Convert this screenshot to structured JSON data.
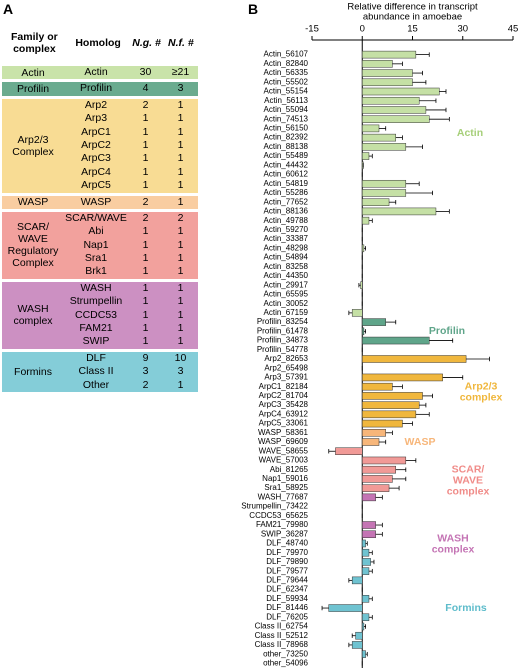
{
  "panel_a": "A",
  "panel_b": "B",
  "table": {
    "header": [
      "Family or complex",
      "Homolog",
      "N.g. #",
      "N.f. #"
    ],
    "groups": [
      {
        "family": "Actin",
        "color": "#c9e3a9",
        "rows": [
          [
            "Actin",
            "30",
            "≥21"
          ]
        ]
      },
      {
        "family": "Profilin",
        "color": "#6aab8f",
        "rows": [
          [
            "Profilin",
            "4",
            "3"
          ]
        ]
      },
      {
        "family": "Arp2/3 Complex",
        "color": "#f8dc94",
        "rows": [
          [
            "Arp2",
            "2",
            "1"
          ],
          [
            "Arp3",
            "1",
            "1"
          ],
          [
            "ArpC1",
            "1",
            "1"
          ],
          [
            "ArpC2",
            "1",
            "1"
          ],
          [
            "ArpC3",
            "1",
            "1"
          ],
          [
            "ArpC4",
            "1",
            "1"
          ],
          [
            "ArpC5",
            "1",
            "1"
          ]
        ]
      },
      {
        "family": "WASP",
        "color": "#f9cda1",
        "rows": [
          [
            "WASP",
            "2",
            "1"
          ]
        ]
      },
      {
        "family": "SCAR/ WAVE Regulatory Complex",
        "color": "#f2a19d",
        "rows": [
          [
            "SCAR/WAVE",
            "2",
            "2"
          ],
          [
            "Abi",
            "1",
            "1"
          ],
          [
            "Nap1",
            "1",
            "1"
          ],
          [
            "Sra1",
            "1",
            "1"
          ],
          [
            "Brk1",
            "1",
            "1"
          ]
        ]
      },
      {
        "family": "WASH complex",
        "color": "#cc90c2",
        "rows": [
          [
            "WASH",
            "1",
            "1"
          ],
          [
            "Strumpellin",
            "1",
            "1"
          ],
          [
            "CCDC53",
            "1",
            "1"
          ],
          [
            "FAM21",
            "1",
            "1"
          ],
          [
            "SWIP",
            "1",
            "1"
          ]
        ]
      },
      {
        "family": "Formins",
        "color": "#84cdd8",
        "rows": [
          [
            "DLF",
            "9",
            "10"
          ],
          [
            "Class II",
            "3",
            "3"
          ],
          [
            "Other",
            "2",
            "1"
          ]
        ]
      }
    ]
  },
  "chart_data": {
    "type": "bar",
    "orientation": "horizontal",
    "x_label": [
      "Relative difference in transcript",
      "abundance in amoebae"
    ],
    "xlim": [
      -15,
      45
    ],
    "xticks": [
      -15,
      0,
      15,
      30,
      45
    ],
    "groups": [
      {
        "label": [
          "Actin"
        ],
        "color": "#c5e0a5",
        "label_color": "#a6cf79",
        "categories": [
          "Actin_56107",
          "Actin_82840",
          "Actin_56335",
          "Actin_55502",
          "Actin_55154",
          "Actin_56113",
          "Actin_55094",
          "Actin_74513",
          "Actin_56150",
          "Actin_82392",
          "Actin_88138",
          "Actin_55489",
          "Actin_44432",
          "Actin_60612",
          "Actin_54819",
          "Actin_55286",
          "Actin_77652",
          "Actin_88136",
          "Actin_49788",
          "Actin_59270",
          "Actin_33387",
          "Actin_48298",
          "Actin_54894",
          "Actin_83258",
          "Actin_44350",
          "Actin_29917",
          "Actin_65595",
          "Actin_30052",
          "Actin_67159"
        ],
        "values": [
          16,
          9,
          15,
          15,
          23,
          17,
          19,
          20,
          5,
          10,
          13,
          2,
          0.3,
          0,
          13,
          13,
          8,
          22,
          2,
          0,
          0,
          0.5,
          0,
          0,
          0,
          -0.5,
          0,
          0,
          -3
        ],
        "errors": [
          4,
          3,
          3,
          4,
          2,
          5,
          6,
          6,
          2,
          2,
          5,
          1,
          0,
          0,
          4,
          8,
          2,
          4,
          1,
          0,
          0,
          0.5,
          0,
          0,
          0,
          0.5,
          0,
          0,
          1
        ]
      },
      {
        "label": [
          "Profilin"
        ],
        "color": "#5fa58a",
        "label_color": "#5fa58a",
        "categories": [
          "Profilin_83254",
          "Profilin_61478",
          "Profilin_34873",
          "Profilin_54778"
        ],
        "values": [
          7,
          0.5,
          20,
          0
        ],
        "errors": [
          3,
          0.5,
          7,
          0
        ]
      },
      {
        "label": [
          "Arp2/3",
          "complex"
        ],
        "color": "#f0b73d",
        "label_color": "#f0b73d",
        "categories": [
          "Arp2_82653",
          "Arp2_65498",
          "Arp3_57391",
          "ArpC1_82184",
          "ArpC2_81704",
          "ArpC3_35428",
          "ArpC4_63912",
          "ArpC5_33061"
        ],
        "values": [
          31,
          0,
          24,
          9,
          18,
          17,
          16,
          12
        ],
        "errors": [
          7,
          0,
          6,
          3,
          3,
          2,
          4,
          3
        ]
      },
      {
        "label": [
          "WASP"
        ],
        "color": "#f7b67a",
        "label_color": "#f7b67a",
        "categories": [
          "WASP_58361",
          "WASP_69609"
        ],
        "values": [
          7,
          5
        ],
        "errors": [
          2,
          2
        ]
      },
      {
        "label": [
          "SCAR/",
          "WAVE",
          "complex"
        ],
        "color": "#f19a97",
        "label_color": "#f08c89",
        "categories": [
          "WAVE_58655",
          "WAVE_57003",
          "Abi_81265",
          "Nap1_59016",
          "Sra1_58925"
        ],
        "values": [
          -8,
          13,
          10,
          9,
          8
        ],
        "errors": [
          2,
          3,
          3,
          4,
          3
        ]
      },
      {
        "label": [
          "WASH",
          "complex"
        ],
        "color": "#c474b4",
        "label_color": "#c474b4",
        "categories": [
          "WASH_77687",
          "Strumpellin_73422",
          "CCDC53_65625",
          "FAM21_79980",
          "SWIP_36287"
        ],
        "values": [
          4,
          0,
          0,
          4,
          4
        ],
        "errors": [
          2,
          0,
          0,
          2,
          2
        ]
      },
      {
        "label": [
          "Formins"
        ],
        "color": "#6fc3d1",
        "label_color": "#5ebccb",
        "categories": [
          "DLF_48740",
          "DLF_79970",
          "DLF_79890",
          "DLF_79577",
          "DLF_79644",
          "DLF_62347",
          "DLF_59934",
          "DLF_81446",
          "DLF_76205",
          "Class II_62754",
          "Class II_52512",
          "Class II_78968",
          "other_73250",
          "other_54096"
        ],
        "values": [
          1,
          2,
          2.5,
          2,
          -3,
          0,
          2,
          -10,
          2,
          0.5,
          -2,
          -3,
          1,
          0
        ],
        "errors": [
          0.5,
          1,
          1,
          1,
          1,
          0,
          1,
          2,
          1,
          0.5,
          1,
          1,
          0.5,
          0
        ]
      }
    ]
  }
}
